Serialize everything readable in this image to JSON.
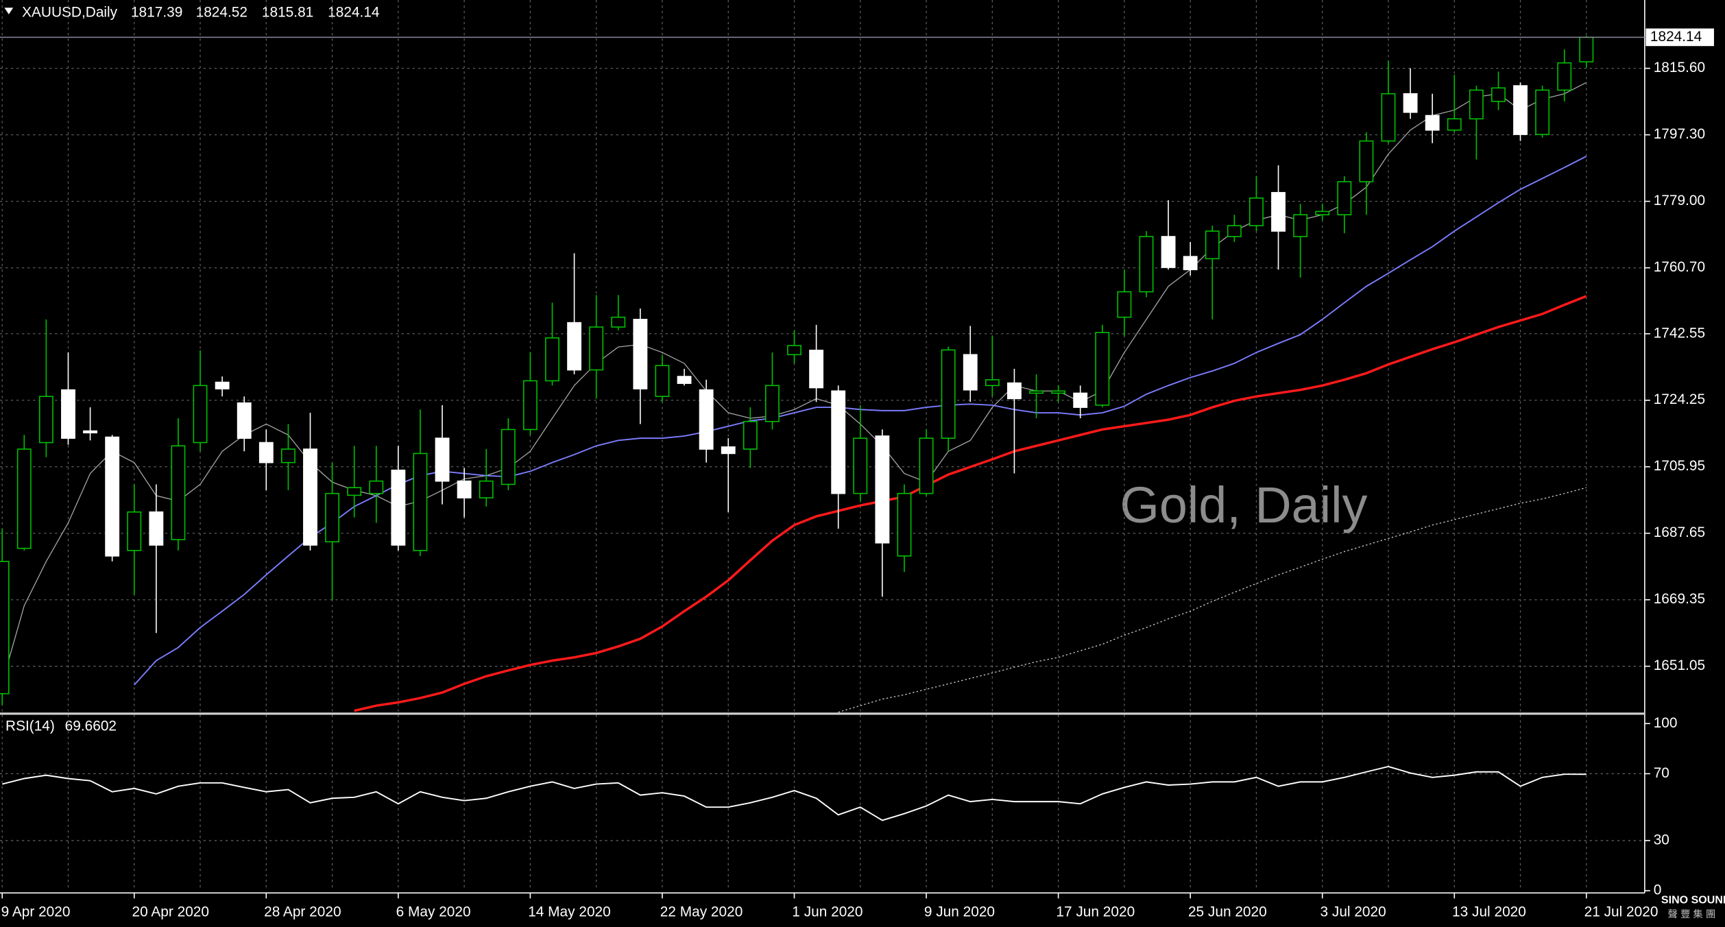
{
  "chart_data": [
    {
      "type": "candlestick",
      "title": "XAUUSD,Daily",
      "annotation": "Gold, Daily",
      "categories": [
        "9 Apr 2020",
        null,
        null,
        null,
        null,
        null,
        "20 Apr 2020",
        null,
        null,
        null,
        null,
        null,
        "28 Apr 2020",
        null,
        null,
        null,
        null,
        null,
        "6 May 2020",
        null,
        null,
        null,
        null,
        null,
        "14 May 2020",
        null,
        null,
        null,
        null,
        null,
        "22 May 2020",
        null,
        null,
        null,
        null,
        null,
        "1 Jun 2020",
        null,
        null,
        null,
        null,
        null,
        "9 Jun 2020",
        null,
        null,
        null,
        null,
        null,
        "17 Jun 2020",
        null,
        null,
        null,
        null,
        null,
        "25 Jun 2020",
        null,
        null,
        null,
        null,
        null,
        "3 Jul 2020",
        null,
        null,
        null,
        null,
        null,
        "13 Jul 2020",
        null,
        null,
        null,
        null,
        null,
        "21 Jul 2020"
      ],
      "open": [
        1643.5,
        1683.5,
        1712.6,
        1727.1,
        1715.8,
        1714.1,
        1682.9,
        1693.5,
        1685.9,
        1712.6,
        1729.2,
        1723.5,
        1712.6,
        1707.1,
        1710.8,
        1685.3,
        1698.1,
        1698.6,
        1705.0,
        1682.9,
        1713.8,
        1702.0,
        1697.4,
        1701.1,
        1716.2,
        1729.6,
        1745.6,
        1732.6,
        1744.4,
        1746.5,
        1725.3,
        1730.8,
        1727.1,
        1711.4,
        1710.8,
        1718.4,
        1736.8,
        1738.0,
        1726.8,
        1698.6,
        1714.4,
        1681.4,
        1698.6,
        1713.8,
        1736.8,
        1728.3,
        1729.0,
        1726.2,
        1726.2,
        1726.2,
        1722.9,
        1747.1,
        1754.1,
        1769.3,
        1763.8,
        1763.2,
        1769.3,
        1772.3,
        1781.4,
        1769.3,
        1775.3,
        1775.3,
        1784.4,
        1795.6,
        1808.6,
        1802.6,
        1798.6,
        1801.7,
        1806.5,
        1810.8,
        1797.4,
        1809.6,
        1817.39
      ],
      "high": [
        1688.9,
        1714.7,
        1746.5,
        1737.4,
        1722.3,
        1714.7,
        1701.1,
        1701.1,
        1719.3,
        1738.0,
        1730.8,
        1725.3,
        1716.2,
        1717.7,
        1720.8,
        1707.1,
        1711.7,
        1711.7,
        1711.7,
        1721.7,
        1722.9,
        1705.6,
        1710.8,
        1719.3,
        1737.4,
        1751.1,
        1764.7,
        1753.2,
        1753.2,
        1749.5,
        1736.8,
        1732.9,
        1729.9,
        1713.8,
        1722.3,
        1737.4,
        1743.5,
        1745.0,
        1728.3,
        1722.9,
        1716.2,
        1701.1,
        1716.2,
        1739.0,
        1744.7,
        1742.0,
        1732.9,
        1731.4,
        1728.3,
        1728.3,
        1745.0,
        1760.2,
        1770.8,
        1779.3,
        1767.8,
        1772.3,
        1775.3,
        1785.9,
        1788.9,
        1778.3,
        1778.3,
        1785.9,
        1798.0,
        1817.7,
        1815.6,
        1808.6,
        1813.8,
        1810.8,
        1814.7,
        1811.7,
        1810.8,
        1820.8,
        1824.52
      ],
      "low": [
        1640.4,
        1682.9,
        1708.6,
        1712.0,
        1713.2,
        1679.9,
        1670.8,
        1660.2,
        1682.9,
        1710.2,
        1725.3,
        1710.2,
        1699.5,
        1699.5,
        1682.9,
        1669.3,
        1692.0,
        1690.5,
        1682.9,
        1681.4,
        1695.6,
        1692.0,
        1695.0,
        1699.5,
        1714.7,
        1728.3,
        1731.4,
        1724.7,
        1743.5,
        1717.7,
        1723.8,
        1728.3,
        1707.1,
        1693.5,
        1705.6,
        1716.2,
        1734.4,
        1723.8,
        1688.9,
        1696.5,
        1670.2,
        1677.0,
        1698.0,
        1710.2,
        1723.8,
        1725.3,
        1704.1,
        1719.3,
        1723.8,
        1719.3,
        1722.3,
        1742.0,
        1752.6,
        1760.2,
        1758.6,
        1746.5,
        1767.8,
        1770.8,
        1760.2,
        1758.0,
        1773.8,
        1770.2,
        1775.3,
        1795.0,
        1801.7,
        1795.0,
        1798.0,
        1790.5,
        1804.1,
        1795.6,
        1796.5,
        1806.5,
        1815.81
      ],
      "close": [
        1679.9,
        1710.8,
        1725.3,
        1713.8,
        1715.3,
        1681.4,
        1693.5,
        1684.4,
        1711.7,
        1728.3,
        1727.4,
        1713.8,
        1707.1,
        1710.8,
        1684.4,
        1698.6,
        1700.2,
        1702.0,
        1684.4,
        1709.6,
        1702.0,
        1697.4,
        1702.0,
        1716.2,
        1729.6,
        1741.4,
        1732.6,
        1744.4,
        1747.1,
        1727.4,
        1733.8,
        1728.9,
        1710.8,
        1709.6,
        1718.4,
        1728.3,
        1739.3,
        1727.7,
        1698.6,
        1713.8,
        1685.0,
        1698.6,
        1713.8,
        1738.1,
        1727.1,
        1729.9,
        1724.7,
        1726.8,
        1726.8,
        1722.3,
        1742.9,
        1754.1,
        1769.3,
        1760.8,
        1760.2,
        1770.8,
        1772.3,
        1779.9,
        1770.8,
        1775.3,
        1776.2,
        1784.4,
        1795.6,
        1808.6,
        1803.5,
        1798.6,
        1801.7,
        1809.6,
        1810.2,
        1797.4,
        1809.6,
        1817.1,
        1824.14
      ],
      "up_color": "#00c000",
      "down_color": "#ffffff",
      "series": [
        {
          "color": "#a8a8a8",
          "style": "thin",
          "values": [
            1646.5,
            1667.7,
            1679.9,
            1690.5,
            1704.1,
            1710.2,
            1707.1,
            1698.0,
            1696.5,
            1701.1,
            1710.2,
            1714.7,
            1717.7,
            1714.7,
            1707.1,
            1701.7,
            1699.5,
            1698.0,
            1695.0,
            1696.5,
            1699.5,
            1702.6,
            1703.5,
            1705.6,
            1710.2,
            1719.3,
            1728.3,
            1734.4,
            1738.9,
            1739.6,
            1737.4,
            1734.4,
            1726.8,
            1720.8,
            1719.3,
            1719.9,
            1721.7,
            1724.7,
            1722.9,
            1717.7,
            1711.7,
            1704.1,
            1701.7,
            1710.2,
            1713.2,
            1722.3,
            1728.3,
            1726.8,
            1726.8,
            1723.8,
            1726.8,
            1737.4,
            1746.5,
            1755.6,
            1760.2,
            1766.2,
            1770.8,
            1773.8,
            1775.3,
            1773.8,
            1775.3,
            1778.3,
            1782.9,
            1792.0,
            1798.6,
            1802.6,
            1804.1,
            1807.7,
            1808.6,
            1804.1,
            1807.1,
            1808.6,
            1811.7
          ]
        },
        {
          "color": "#7c7cff",
          "style": "normal",
          "values": [
            null,
            null,
            null,
            null,
            null,
            null,
            1645.9,
            1652.6,
            1656.2,
            1661.7,
            1666.2,
            1670.8,
            1676.2,
            1681.4,
            1686.5,
            1690.5,
            1695.0,
            1698.0,
            1701.1,
            1703.5,
            1704.7,
            1704.1,
            1703.5,
            1703.2,
            1704.7,
            1707.1,
            1709.3,
            1711.7,
            1713.2,
            1713.8,
            1713.8,
            1714.4,
            1715.6,
            1717.1,
            1718.6,
            1719.3,
            1720.8,
            1722.3,
            1722.3,
            1721.7,
            1721.4,
            1721.4,
            1722.3,
            1722.9,
            1723.2,
            1722.9,
            1721.7,
            1720.8,
            1720.8,
            1720.2,
            1720.8,
            1722.6,
            1725.9,
            1728.3,
            1730.5,
            1732.3,
            1734.4,
            1737.4,
            1739.9,
            1742.3,
            1746.5,
            1751.1,
            1755.6,
            1759.2,
            1762.9,
            1766.5,
            1770.8,
            1774.7,
            1778.6,
            1782.3,
            1785.3,
            1788.3,
            1791.4
          ]
        },
        {
          "color": "#ff1a1a",
          "style": "thick",
          "values": [
            null,
            null,
            null,
            null,
            null,
            null,
            null,
            null,
            null,
            null,
            null,
            null,
            null,
            null,
            null,
            null,
            1638.8,
            1640.2,
            1641.1,
            1642.3,
            1643.8,
            1646.2,
            1648.3,
            1649.9,
            1651.4,
            1652.6,
            1653.5,
            1654.7,
            1656.5,
            1658.6,
            1662.0,
            1666.2,
            1670.2,
            1674.7,
            1680.2,
            1685.6,
            1689.9,
            1692.3,
            1693.8,
            1695.3,
            1696.5,
            1697.7,
            1700.8,
            1703.8,
            1705.9,
            1708.0,
            1710.2,
            1711.7,
            1713.2,
            1714.7,
            1716.2,
            1717.1,
            1718.0,
            1718.9,
            1720.2,
            1722.3,
            1724.1,
            1725.3,
            1726.2,
            1727.1,
            1728.3,
            1729.9,
            1731.7,
            1734.1,
            1736.2,
            1738.3,
            1740.2,
            1742.3,
            1744.4,
            1746.2,
            1748.0,
            1750.5,
            1752.9
          ]
        },
        {
          "color": "#d0d0d0",
          "style": "dotted",
          "values": [
            null,
            null,
            null,
            null,
            null,
            null,
            null,
            null,
            null,
            null,
            null,
            null,
            null,
            null,
            null,
            null,
            null,
            null,
            null,
            null,
            null,
            null,
            null,
            null,
            null,
            null,
            null,
            null,
            null,
            null,
            null,
            null,
            null,
            null,
            null,
            null,
            null,
            null,
            1638.4,
            1640.2,
            1642.0,
            1643.2,
            1644.7,
            1646.2,
            1647.7,
            1649.2,
            1650.8,
            1652.3,
            1653.5,
            1655.3,
            1657.1,
            1659.6,
            1661.7,
            1664.1,
            1666.2,
            1668.9,
            1671.4,
            1673.8,
            1676.2,
            1678.3,
            1680.5,
            1682.6,
            1684.4,
            1686.2,
            1688.0,
            1689.9,
            1691.4,
            1692.9,
            1694.4,
            1695.9,
            1697.1,
            1698.6,
            1700.2
          ]
        }
      ],
      "ylim": [
        1638.3,
        1834.4
      ],
      "yticks": [
        {
          "value": 1815.6,
          "label": "1815.60"
        },
        {
          "value": 1797.3,
          "label": "1797.30"
        },
        {
          "value": 1779,
          "label": "1779.00"
        },
        {
          "value": 1760.7,
          "label": "1760.70"
        },
        1742.55,
        1724.25,
        1705.95,
        1687.65,
        1669.35,
        1651.05
      ],
      "grid": true
    },
    {
      "type": "line",
      "title": "RSI(14)",
      "series": [
        {
          "color": "#ffffff",
          "values": [
            63.8,
            67.1,
            69.1,
            67.1,
            65.8,
            59.2,
            61.2,
            57.9,
            62.5,
            64.5,
            64.5,
            61.8,
            59.2,
            60.5,
            52.6,
            55.3,
            55.9,
            59.2,
            52.0,
            59.2,
            55.9,
            53.9,
            55.3,
            59.2,
            62.5,
            65.1,
            61.2,
            63.8,
            64.5,
            57.2,
            58.6,
            56.6,
            50.0,
            50.0,
            52.6,
            55.9,
            59.9,
            55.3,
            45.4,
            50.0,
            42.1,
            46.1,
            50.7,
            57.2,
            53.3,
            54.6,
            53.3,
            53.3,
            53.3,
            52.0,
            57.9,
            61.8,
            65.1,
            63.2,
            63.8,
            65.1,
            65.1,
            67.8,
            62.5,
            65.1,
            65.1,
            67.8,
            71.1,
            74.3,
            70.4,
            67.8,
            69.1,
            71.1,
            71.1,
            62.5,
            67.8,
            69.7,
            69.6602
          ]
        }
      ],
      "ylim": [
        0,
        100
      ],
      "yticks": [
        100,
        70,
        30,
        0
      ],
      "grid": true
    }
  ],
  "logo": {
    "text": "SINO SOUND",
    "subtext": "聲 豐 集 團"
  }
}
